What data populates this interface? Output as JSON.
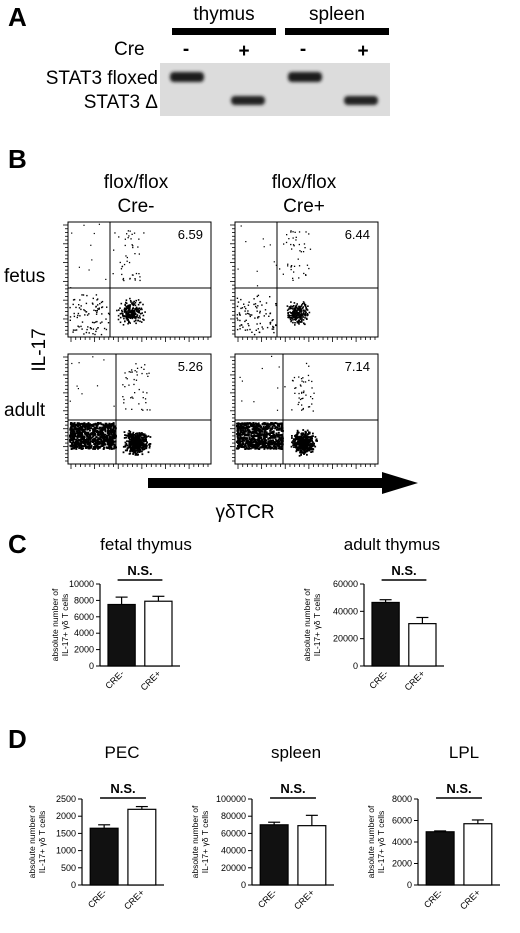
{
  "panelA": {
    "letter": "A",
    "groups": [
      "thymus",
      "spleen"
    ],
    "cre_label": "Cre",
    "lanes": [
      "-",
      "+",
      "-",
      "+"
    ],
    "band_labels": [
      "STAT3 floxed",
      "STAT3 Δ"
    ]
  },
  "panelB": {
    "letter": "B",
    "col_headers": [
      [
        "flox/flox",
        "Cre-"
      ],
      [
        "flox/flox",
        "Cre+"
      ]
    ],
    "row_labels": [
      "fetus",
      "adult"
    ],
    "y_label": "IL-17",
    "x_label": "γδTCR",
    "percentages": [
      "6.59",
      "6.44",
      "5.26",
      "7.14"
    ]
  },
  "chart_data": [
    {
      "type": "bar",
      "title": "fetal thymus",
      "ylabel": "absolute number of IL-17+ γδ T cells",
      "categories": [
        "CRE-",
        "CRE+"
      ],
      "values": [
        7500,
        7900
      ],
      "errors": [
        900,
        600
      ],
      "ylim": [
        0,
        10000
      ],
      "yticks": [
        0,
        2000,
        4000,
        6000,
        8000,
        10000
      ],
      "annotation": "N.S."
    },
    {
      "type": "bar",
      "title": "adult thymus",
      "ylabel": "absolute number of IL-17+ γδ T cells",
      "categories": [
        "CRE-",
        "CRE+"
      ],
      "values": [
        46500,
        31000
      ],
      "errors": [
        2000,
        4500
      ],
      "ylim": [
        0,
        60000
      ],
      "yticks": [
        0,
        20000,
        40000,
        60000
      ],
      "annotation": "N.S."
    },
    {
      "type": "bar",
      "title": "PEC",
      "ylabel": "absolute number of IL-17+ γδ T cells",
      "categories": [
        "CRE-",
        "CRE+"
      ],
      "values": [
        1650,
        2200
      ],
      "errors": [
        100,
        80
      ],
      "ylim": [
        0,
        2500
      ],
      "yticks": [
        0,
        500,
        1000,
        1500,
        2000,
        2500
      ],
      "annotation": "N.S."
    },
    {
      "type": "bar",
      "title": "spleen",
      "ylabel": "absolute number of IL-17+ γδ T cells",
      "categories": [
        "CRE-",
        "CRE+"
      ],
      "values": [
        70000,
        69000
      ],
      "errors": [
        3000,
        12000
      ],
      "ylim": [
        0,
        100000
      ],
      "yticks": [
        0,
        20000,
        40000,
        60000,
        80000,
        100000
      ],
      "annotation": "N.S."
    },
    {
      "type": "bar",
      "title": "LPL",
      "ylabel": "absolute number of IL-17+ γδ T cells",
      "categories": [
        "CRE-",
        "CRE+"
      ],
      "values": [
        4950,
        5700
      ],
      "errors": [
        80,
        350
      ],
      "ylim": [
        0,
        8000
      ],
      "yticks": [
        0,
        2000,
        4000,
        6000,
        8000
      ],
      "annotation": "N.S."
    }
  ],
  "panelC": {
    "letter": "C"
  },
  "panelD": {
    "letter": "D"
  }
}
